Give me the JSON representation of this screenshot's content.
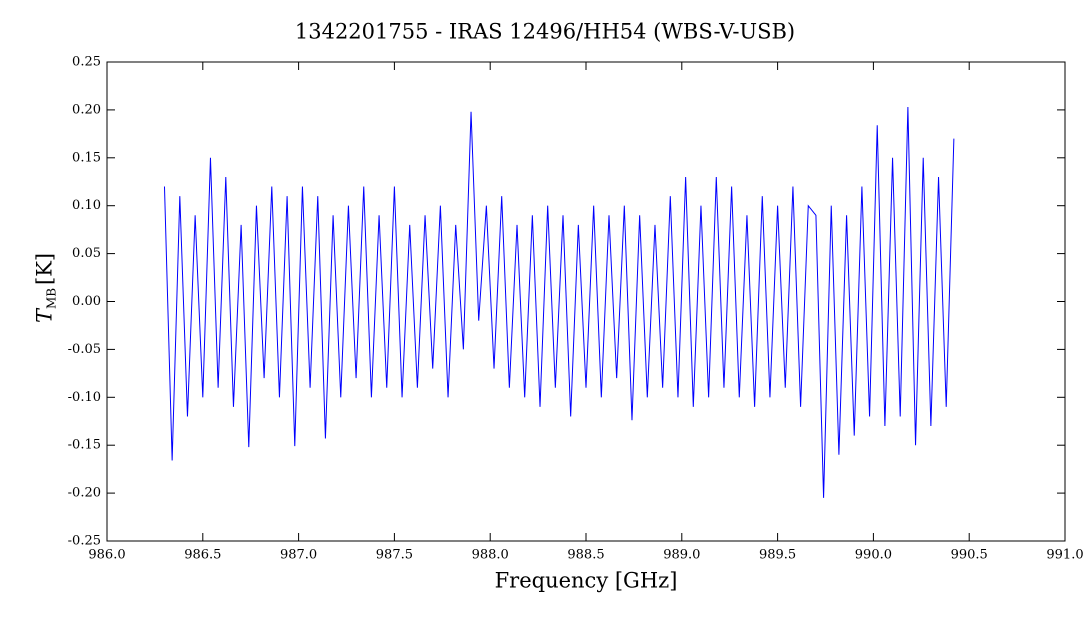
{
  "chart_data": {
    "type": "line",
    "title": "1342201755 - IRAS 12496/HH54 (WBS-V-USB)",
    "x_label": "Frequency [GHz]",
    "y_label": "T",
    "y_label_sub": "MB",
    "y_label_unit": "[K]",
    "color": "#0000ff",
    "x": [
      986.3,
      986.34,
      986.38,
      986.42,
      986.46,
      986.5,
      986.54,
      986.58,
      986.62,
      986.66,
      986.7,
      986.74,
      986.78,
      986.82,
      986.86,
      986.9,
      986.94,
      986.98,
      987.02,
      987.06,
      987.1,
      987.14,
      987.18,
      987.22,
      987.26,
      987.3,
      987.34,
      987.38,
      987.42,
      987.46,
      987.5,
      987.54,
      987.58,
      987.62,
      987.66,
      987.7,
      987.74,
      987.78,
      987.82,
      987.86,
      987.9,
      987.94,
      987.98,
      988.02,
      988.06,
      988.1,
      988.14,
      988.18,
      988.22,
      988.26,
      988.3,
      988.34,
      988.38,
      988.42,
      988.46,
      988.5,
      988.54,
      988.58,
      988.62,
      988.66,
      988.7,
      988.74,
      988.78,
      988.82,
      988.86,
      988.9,
      988.94,
      988.98,
      989.02,
      989.06,
      989.1,
      989.14,
      989.18,
      989.22,
      989.26,
      989.3,
      989.34,
      989.38,
      989.42,
      989.46,
      989.5,
      989.54,
      989.58,
      989.62,
      989.66,
      989.7,
      989.74,
      989.78,
      989.82,
      989.86,
      989.9,
      989.94,
      989.98,
      990.02,
      990.06,
      990.1,
      990.14,
      990.18,
      990.22,
      990.26,
      990.3,
      990.34,
      990.38,
      990.42
    ],
    "values": [
      0.12,
      -0.166,
      0.11,
      -0.12,
      0.09,
      -0.1,
      0.15,
      -0.09,
      0.13,
      -0.11,
      0.08,
      -0.152,
      0.1,
      -0.08,
      0.12,
      -0.1,
      0.11,
      -0.151,
      0.12,
      -0.09,
      0.11,
      -0.143,
      0.09,
      -0.1,
      0.1,
      -0.08,
      0.12,
      -0.1,
      0.09,
      -0.09,
      0.12,
      -0.1,
      0.08,
      -0.09,
      0.09,
      -0.07,
      0.1,
      -0.1,
      0.08,
      -0.05,
      0.198,
      -0.02,
      0.1,
      -0.07,
      0.11,
      -0.09,
      0.08,
      -0.1,
      0.09,
      -0.11,
      0.1,
      -0.09,
      0.09,
      -0.12,
      0.08,
      -0.09,
      0.1,
      -0.1,
      0.09,
      -0.08,
      0.1,
      -0.124,
      0.09,
      -0.1,
      0.08,
      -0.09,
      0.11,
      -0.1,
      0.13,
      -0.11,
      0.1,
      -0.1,
      0.13,
      -0.09,
      0.12,
      -0.1,
      0.09,
      -0.11,
      0.11,
      -0.1,
      0.1,
      -0.09,
      0.12,
      -0.11,
      0.1,
      0.09,
      -0.205,
      0.1,
      -0.16,
      0.09,
      -0.14,
      0.12,
      -0.12,
      0.184,
      -0.13,
      0.15,
      -0.12,
      0.203,
      -0.15,
      0.15,
      -0.13,
      0.13,
      -0.11,
      0.17
    ],
    "xlim": [
      986,
      991
    ],
    "xticks": [
      {
        "value": 986,
        "label": "986.0"
      },
      {
        "value": 986.5,
        "label": "986.5"
      },
      {
        "value": 987,
        "label": "987.0"
      },
      {
        "value": 987.5,
        "label": "987.5"
      },
      {
        "value": 988,
        "label": "988.0"
      },
      {
        "value": 988.5,
        "label": "988.5"
      },
      {
        "value": 989,
        "label": "989.0"
      },
      {
        "value": 989.5,
        "label": "989.5"
      },
      {
        "value": 990,
        "label": "990.0"
      },
      {
        "value": 990.5,
        "label": "990.5"
      },
      {
        "value": 991,
        "label": "991.0"
      }
    ],
    "ylim": [
      -0.25,
      0.25
    ],
    "yticks": [
      -0.25,
      {
        "value": -0.2,
        "label": "-0.20"
      },
      -0.15,
      {
        "value": -0.1,
        "label": "-0.10"
      },
      -0.05,
      {
        "value": 0,
        "label": "0.00"
      },
      0.05,
      {
        "value": 0.1,
        "label": "0.10"
      },
      0.15,
      {
        "value": 0.2,
        "label": "0.20"
      },
      0.25
    ]
  }
}
